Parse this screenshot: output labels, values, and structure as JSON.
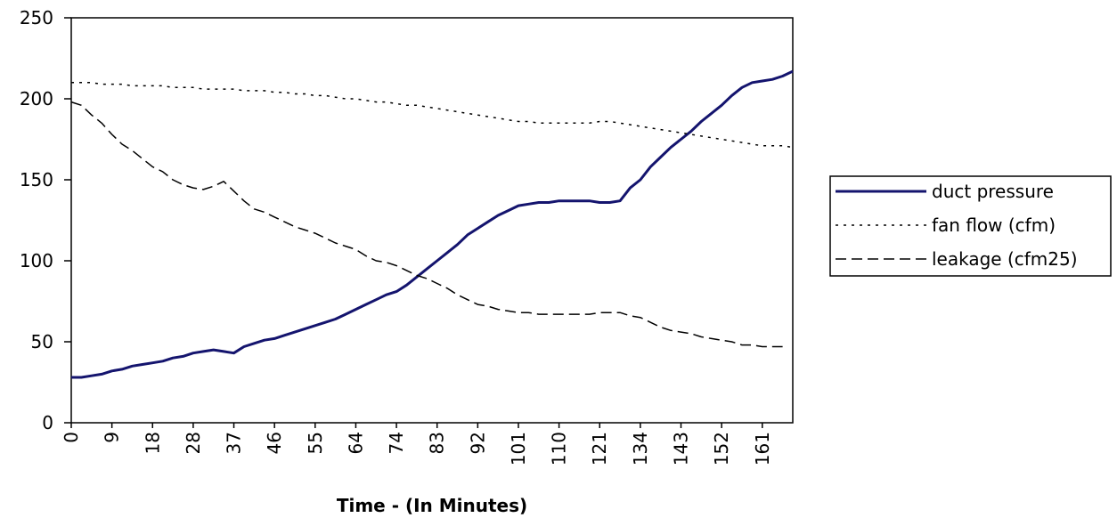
{
  "chart_data": {
    "type": "line",
    "categories": [
      "0",
      null,
      null,
      null,
      "9",
      null,
      null,
      null,
      "18",
      null,
      null,
      null,
      "28",
      null,
      null,
      null,
      "37",
      null,
      null,
      null,
      "46",
      null,
      null,
      null,
      "55",
      null,
      null,
      null,
      "64",
      null,
      null,
      null,
      "74",
      null,
      null,
      null,
      "83",
      null,
      null,
      null,
      "92",
      null,
      null,
      null,
      "101",
      null,
      null,
      null,
      "110",
      null,
      null,
      null,
      "121",
      null,
      null,
      null,
      "134",
      null,
      null,
      null,
      "143",
      null,
      null,
      null,
      "152",
      null,
      null,
      null,
      "161",
      null,
      null,
      null
    ],
    "x_label": "Time - (In Minutes)",
    "ylim": [
      0,
      250
    ],
    "yticks": [
      0,
      50,
      100,
      150,
      200,
      250
    ],
    "grid": false,
    "legend": "right",
    "series": [
      {
        "name": "duct pressure",
        "color": "#14146e",
        "style": "solid",
        "values": [
          28,
          28,
          29,
          30,
          32,
          33,
          35,
          36,
          37,
          38,
          40,
          41,
          43,
          44,
          45,
          44,
          43,
          47,
          49,
          51,
          52,
          54,
          56,
          58,
          60,
          62,
          64,
          67,
          70,
          73,
          76,
          79,
          81,
          85,
          90,
          95,
          100,
          105,
          110,
          116,
          120,
          124,
          128,
          131,
          134,
          135,
          136,
          136,
          137,
          137,
          137,
          137,
          136,
          136,
          137,
          145,
          150,
          158,
          164,
          170,
          175,
          180,
          186,
          191,
          196,
          202,
          207,
          210,
          211,
          212,
          214,
          217
        ]
      },
      {
        "name": "fan flow (cfm)",
        "color": "#000000",
        "style": "dotted",
        "values": [
          210,
          210,
          210,
          209,
          209,
          209,
          208,
          208,
          208,
          208,
          207,
          207,
          207,
          206,
          206,
          206,
          206,
          205,
          205,
          205,
          204,
          204,
          203,
          203,
          202,
          202,
          201,
          200,
          200,
          199,
          198,
          198,
          197,
          196,
          196,
          195,
          194,
          193,
          192,
          191,
          190,
          189,
          188,
          187,
          186,
          186,
          185,
          185,
          185,
          185,
          185,
          185,
          186,
          186,
          185,
          184,
          183,
          182,
          181,
          180,
          179,
          178,
          177,
          176,
          175,
          174,
          173,
          172,
          171,
          171,
          171,
          170
        ]
      },
      {
        "name": "leakage (cfm25)",
        "color": "#000000",
        "style": "dashed",
        "values": [
          198,
          196,
          190,
          185,
          178,
          172,
          168,
          163,
          158,
          155,
          150,
          147,
          145,
          144,
          146,
          149,
          143,
          137,
          132,
          130,
          127,
          124,
          121,
          119,
          117,
          114,
          111,
          109,
          107,
          103,
          100,
          99,
          97,
          94,
          91,
          89,
          86,
          83,
          79,
          76,
          73,
          72,
          70,
          69,
          68,
          68,
          67,
          67,
          67,
          67,
          67,
          67,
          68,
          68,
          68,
          66,
          65,
          62,
          59,
          57,
          56,
          55,
          53,
          52,
          51,
          50,
          48,
          48,
          47,
          47,
          47,
          null
        ]
      }
    ]
  }
}
